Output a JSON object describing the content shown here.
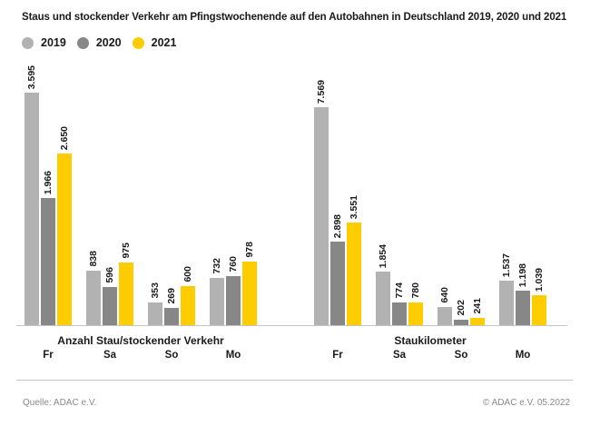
{
  "title": "Staus und stockender Verkehr am Pfingstwochenende auf den Autobahnen in Deutschland 2019, 2020 und 2021",
  "legend": [
    {
      "label": "2019",
      "color": "#b2b2b2"
    },
    {
      "label": "2020",
      "color": "#878787"
    },
    {
      "label": "2021",
      "color": "#ffcc00"
    }
  ],
  "chart_data": {
    "type": "bar",
    "title": "Staus und stockender Verkehr am Pfingstwochenende auf den Autobahnen in Deutschland 2019, 2020 und 2021",
    "categories": [
      "Fr",
      "Sa",
      "So",
      "Mo"
    ],
    "legend_position": "top-left",
    "grid": false,
    "charts": [
      {
        "id": "anzahl",
        "axis_title": "Anzahl Stau/stockender Verkehr",
        "series": [
          {
            "name": "2019",
            "color": "#b2b2b2",
            "values": [
              3595,
              838,
              353,
              732
            ],
            "labels": [
              "3.595",
              "838",
              "353",
              "732"
            ]
          },
          {
            "name": "2020",
            "color": "#878787",
            "values": [
              1966,
              596,
              269,
              760
            ],
            "labels": [
              "1.966",
              "596",
              "269",
              "760"
            ]
          },
          {
            "name": "2021",
            "color": "#ffcc00",
            "values": [
              2650,
              975,
              600,
              978
            ],
            "labels": [
              "2.650",
              "975",
              "600",
              "978"
            ]
          }
        ]
      },
      {
        "id": "staukilometer",
        "axis_title": "Staukilometer",
        "series": [
          {
            "name": "2019",
            "color": "#b2b2b2",
            "values": [
              7569,
              1854,
              640,
              1537
            ],
            "labels": [
              "7.569",
              "1.854",
              "640",
              "1.537"
            ]
          },
          {
            "name": "2020",
            "color": "#878787",
            "values": [
              2898,
              774,
              202,
              1198
            ],
            "labels": [
              "2.898",
              "774",
              "202",
              "1.198"
            ]
          },
          {
            "name": "2021",
            "color": "#ffcc00",
            "values": [
              3551,
              780,
              241,
              1039
            ],
            "labels": [
              "3.551",
              "780",
              "241",
              "1.039"
            ]
          }
        ]
      }
    ]
  },
  "footer": {
    "source": "Quelle: ADAC e.V.",
    "copyright": "© ADAC e.V. 05.2022"
  }
}
